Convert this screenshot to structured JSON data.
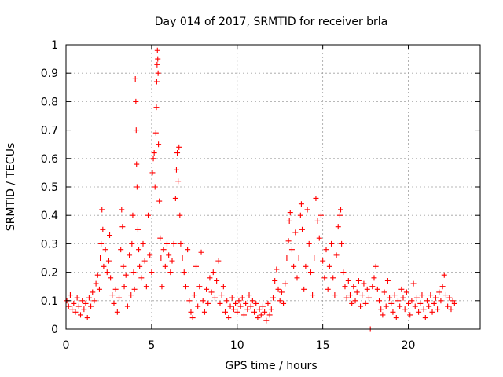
{
  "chart_data": {
    "type": "scatter",
    "title": "Day 014 of 2017, SRMTID for receiver brla",
    "xlabel": "GPS time / hours",
    "ylabel": "SRMTID / TECUs",
    "xlim": [
      0,
      24.2
    ],
    "ylim": [
      0,
      1
    ],
    "xticks": [
      0,
      5,
      10,
      15,
      20
    ],
    "xtick_labels": [
      "0",
      "5",
      "10",
      "15",
      "20"
    ],
    "yticks": [
      0,
      0.1,
      0.2,
      0.3,
      0.4,
      0.5,
      0.6,
      0.7,
      0.8,
      0.9,
      1
    ],
    "ytick_labels": [
      "0",
      "0.1",
      "0.2",
      "0.3",
      "0.4",
      "0.5",
      "0.6",
      "0.7",
      "0.8",
      "0.9",
      "1"
    ],
    "grid": true,
    "marker": "+",
    "color": "#ff0000",
    "series": [
      {
        "name": "SRMTID",
        "points": [
          [
            0.05,
            0.1
          ],
          [
            0.15,
            0.08
          ],
          [
            0.25,
            0.12
          ],
          [
            0.35,
            0.07
          ],
          [
            0.45,
            0.09
          ],
          [
            0.55,
            0.06
          ],
          [
            0.65,
            0.11
          ],
          [
            0.75,
            0.08
          ],
          [
            0.85,
            0.05
          ],
          [
            0.95,
            0.1
          ],
          [
            1.05,
            0.07
          ],
          [
            1.15,
            0.09
          ],
          [
            1.25,
            0.04
          ],
          [
            1.35,
            0.11
          ],
          [
            1.45,
            0.08
          ],
          [
            1.55,
            0.13
          ],
          [
            1.65,
            0.1
          ],
          [
            1.75,
            0.16
          ],
          [
            1.85,
            0.19
          ],
          [
            1.95,
            0.14
          ],
          [
            2.0,
            0.25
          ],
          [
            2.05,
            0.3
          ],
          [
            2.1,
            0.42
          ],
          [
            2.15,
            0.35
          ],
          [
            2.2,
            0.22
          ],
          [
            2.3,
            0.28
          ],
          [
            2.4,
            0.2
          ],
          [
            2.5,
            0.24
          ],
          [
            2.55,
            0.33
          ],
          [
            2.6,
            0.18
          ],
          [
            2.7,
            0.12
          ],
          [
            2.8,
            0.09
          ],
          [
            2.9,
            0.14
          ],
          [
            3.0,
            0.06
          ],
          [
            3.1,
            0.11
          ],
          [
            3.2,
            0.28
          ],
          [
            3.25,
            0.42
          ],
          [
            3.3,
            0.36
          ],
          [
            3.35,
            0.22
          ],
          [
            3.4,
            0.15
          ],
          [
            3.5,
            0.19
          ],
          [
            3.6,
            0.08
          ],
          [
            3.7,
            0.26
          ],
          [
            3.8,
            0.12
          ],
          [
            3.85,
            0.3
          ],
          [
            3.9,
            0.4
          ],
          [
            3.95,
            0.2
          ],
          [
            4.0,
            0.14
          ],
          [
            4.05,
            0.88
          ],
          [
            4.08,
            0.8
          ],
          [
            4.1,
            0.7
          ],
          [
            4.12,
            0.58
          ],
          [
            4.15,
            0.5
          ],
          [
            4.2,
            0.35
          ],
          [
            4.25,
            0.28
          ],
          [
            4.3,
            0.22
          ],
          [
            4.4,
            0.18
          ],
          [
            4.5,
            0.3
          ],
          [
            4.6,
            0.24
          ],
          [
            4.7,
            0.15
          ],
          [
            4.8,
            0.4
          ],
          [
            4.9,
            0.26
          ],
          [
            5.0,
            0.2
          ],
          [
            5.05,
            0.55
          ],
          [
            5.1,
            0.6
          ],
          [
            5.15,
            0.62
          ],
          [
            5.2,
            0.5
          ],
          [
            5.25,
            0.69
          ],
          [
            5.28,
            0.78
          ],
          [
            5.3,
            0.87
          ],
          [
            5.32,
            0.93
          ],
          [
            5.34,
            0.98
          ],
          [
            5.36,
            0.95
          ],
          [
            5.38,
            0.9
          ],
          [
            5.4,
            0.65
          ],
          [
            5.45,
            0.45
          ],
          [
            5.5,
            0.32
          ],
          [
            5.55,
            0.25
          ],
          [
            5.6,
            0.15
          ],
          [
            5.7,
            0.28
          ],
          [
            5.8,
            0.22
          ],
          [
            5.9,
            0.3
          ],
          [
            6.0,
            0.26
          ],
          [
            6.1,
            0.2
          ],
          [
            6.2,
            0.24
          ],
          [
            6.3,
            0.3
          ],
          [
            6.4,
            0.46
          ],
          [
            6.45,
            0.56
          ],
          [
            6.5,
            0.62
          ],
          [
            6.55,
            0.52
          ],
          [
            6.6,
            0.64
          ],
          [
            6.65,
            0.4
          ],
          [
            6.7,
            0.3
          ],
          [
            6.8,
            0.25
          ],
          [
            6.9,
            0.2
          ],
          [
            7.0,
            0.15
          ],
          [
            7.1,
            0.28
          ],
          [
            7.2,
            0.1
          ],
          [
            7.3,
            0.06
          ],
          [
            7.4,
            0.04
          ],
          [
            7.5,
            0.12
          ],
          [
            7.6,
            0.22
          ],
          [
            7.7,
            0.08
          ],
          [
            7.8,
            0.15
          ],
          [
            7.9,
            0.27
          ],
          [
            8.0,
            0.1
          ],
          [
            8.1,
            0.06
          ],
          [
            8.2,
            0.14
          ],
          [
            8.3,
            0.09
          ],
          [
            8.4,
            0.18
          ],
          [
            8.5,
            0.13
          ],
          [
            8.6,
            0.2
          ],
          [
            8.7,
            0.11
          ],
          [
            8.8,
            0.17
          ],
          [
            8.9,
            0.24
          ],
          [
            9.0,
            0.09
          ],
          [
            9.1,
            0.12
          ],
          [
            9.2,
            0.15
          ],
          [
            9.3,
            0.06
          ],
          [
            9.4,
            0.1
          ],
          [
            9.5,
            0.04
          ],
          [
            9.6,
            0.08
          ],
          [
            9.7,
            0.11
          ],
          [
            9.8,
            0.07
          ],
          [
            9.9,
            0.09
          ],
          [
            10.0,
            0.06
          ],
          [
            10.1,
            0.1
          ],
          [
            10.2,
            0.08
          ],
          [
            10.3,
            0.11
          ],
          [
            10.4,
            0.05
          ],
          [
            10.5,
            0.09
          ],
          [
            10.6,
            0.07
          ],
          [
            10.7,
            0.12
          ],
          [
            10.8,
            0.08
          ],
          [
            10.9,
            0.1
          ],
          [
            11.0,
            0.06
          ],
          [
            11.1,
            0.09
          ],
          [
            11.2,
            0.04
          ],
          [
            11.3,
            0.07
          ],
          [
            11.4,
            0.05
          ],
          [
            11.5,
            0.08
          ],
          [
            11.6,
            0.06
          ],
          [
            11.7,
            0.03
          ],
          [
            11.8,
            0.09
          ],
          [
            11.9,
            0.05
          ],
          [
            12.0,
            0.07
          ],
          [
            12.1,
            0.11
          ],
          [
            12.2,
            0.17
          ],
          [
            12.3,
            0.21
          ],
          [
            12.4,
            0.14
          ],
          [
            12.5,
            0.1
          ],
          [
            12.6,
            0.13
          ],
          [
            12.7,
            0.09
          ],
          [
            12.8,
            0.16
          ],
          [
            12.9,
            0.25
          ],
          [
            13.0,
            0.31
          ],
          [
            13.05,
            0.38
          ],
          [
            13.1,
            0.41
          ],
          [
            13.2,
            0.28
          ],
          [
            13.3,
            0.22
          ],
          [
            13.4,
            0.34
          ],
          [
            13.5,
            0.18
          ],
          [
            13.6,
            0.25
          ],
          [
            13.7,
            0.4
          ],
          [
            13.75,
            0.44
          ],
          [
            13.8,
            0.35
          ],
          [
            13.9,
            0.14
          ],
          [
            14.0,
            0.22
          ],
          [
            14.1,
            0.42
          ],
          [
            14.2,
            0.3
          ],
          [
            14.3,
            0.2
          ],
          [
            14.4,
            0.12
          ],
          [
            14.5,
            0.25
          ],
          [
            14.6,
            0.46
          ],
          [
            14.7,
            0.38
          ],
          [
            14.8,
            0.32
          ],
          [
            14.9,
            0.4
          ],
          [
            15.0,
            0.24
          ],
          [
            15.1,
            0.18
          ],
          [
            15.2,
            0.28
          ],
          [
            15.3,
            0.14
          ],
          [
            15.4,
            0.22
          ],
          [
            15.5,
            0.3
          ],
          [
            15.6,
            0.18
          ],
          [
            15.7,
            0.12
          ],
          [
            15.8,
            0.26
          ],
          [
            15.9,
            0.36
          ],
          [
            16.0,
            0.4
          ],
          [
            16.05,
            0.42
          ],
          [
            16.1,
            0.3
          ],
          [
            16.2,
            0.2
          ],
          [
            16.3,
            0.15
          ],
          [
            16.4,
            0.11
          ],
          [
            16.5,
            0.17
          ],
          [
            16.6,
            0.12
          ],
          [
            16.7,
            0.09
          ],
          [
            16.8,
            0.15
          ],
          [
            16.9,
            0.1
          ],
          [
            17.0,
            0.13
          ],
          [
            17.1,
            0.17
          ],
          [
            17.2,
            0.08
          ],
          [
            17.3,
            0.12
          ],
          [
            17.4,
            0.16
          ],
          [
            17.5,
            0.09
          ],
          [
            17.6,
            0.14
          ],
          [
            17.7,
            0.11
          ],
          [
            17.78,
            0.0
          ],
          [
            17.9,
            0.15
          ],
          [
            18.0,
            0.18
          ],
          [
            18.1,
            0.22
          ],
          [
            18.2,
            0.14
          ],
          [
            18.3,
            0.1
          ],
          [
            18.4,
            0.07
          ],
          [
            18.5,
            0.05
          ],
          [
            18.6,
            0.13
          ],
          [
            18.7,
            0.08
          ],
          [
            18.8,
            0.17
          ],
          [
            18.9,
            0.11
          ],
          [
            19.0,
            0.09
          ],
          [
            19.1,
            0.06
          ],
          [
            19.2,
            0.12
          ],
          [
            19.3,
            0.04
          ],
          [
            19.4,
            0.1
          ],
          [
            19.5,
            0.08
          ],
          [
            19.6,
            0.14
          ],
          [
            19.7,
            0.11
          ],
          [
            19.8,
            0.07
          ],
          [
            19.9,
            0.13
          ],
          [
            20.0,
            0.09
          ],
          [
            20.1,
            0.05
          ],
          [
            20.2,
            0.1
          ],
          [
            20.3,
            0.16
          ],
          [
            20.4,
            0.08
          ],
          [
            20.5,
            0.11
          ],
          [
            20.6,
            0.06
          ],
          [
            20.7,
            0.09
          ],
          [
            20.8,
            0.12
          ],
          [
            20.9,
            0.07
          ],
          [
            21.0,
            0.04
          ],
          [
            21.1,
            0.1
          ],
          [
            21.2,
            0.08
          ],
          [
            21.3,
            0.12
          ],
          [
            21.4,
            0.06
          ],
          [
            21.5,
            0.09
          ],
          [
            21.6,
            0.11
          ],
          [
            21.7,
            0.07
          ],
          [
            21.8,
            0.13
          ],
          [
            21.9,
            0.1
          ],
          [
            22.0,
            0.15
          ],
          [
            22.1,
            0.19
          ],
          [
            22.2,
            0.12
          ],
          [
            22.3,
            0.08
          ],
          [
            22.4,
            0.11
          ],
          [
            22.5,
            0.07
          ],
          [
            22.6,
            0.1
          ],
          [
            22.7,
            0.09
          ]
        ]
      }
    ]
  }
}
